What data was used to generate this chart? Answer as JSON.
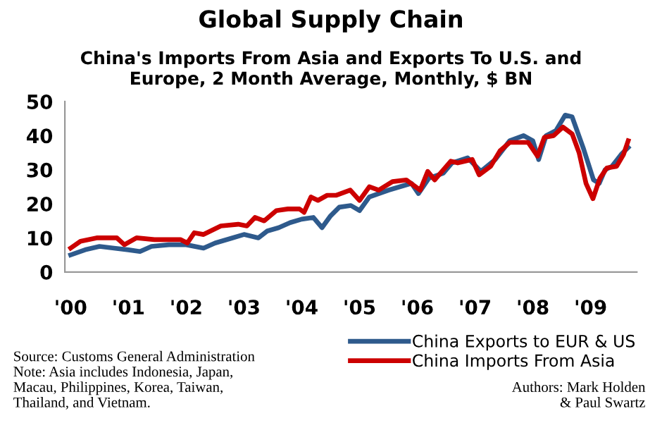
{
  "chart_data": {
    "type": "line",
    "title": "Global Supply Chain",
    "subtitle": "China's Imports From Asia and Exports To U.S. and\nEurope, 2 Month Average, Monthly, $ BN",
    "series": [
      {
        "name": "China Exports to EUR & US",
        "color": "#2e5a8c",
        "x": [
          2000.0,
          2000.25,
          2000.5,
          2000.75,
          2001.0,
          2001.2,
          2001.4,
          2001.7,
          2002.0,
          2002.3,
          2002.5,
          2002.8,
          2003.0,
          2003.25,
          2003.4,
          2003.6,
          2003.8,
          2004.0,
          2004.2,
          2004.35,
          2004.5,
          2004.65,
          2004.85,
          2005.0,
          2005.17,
          2005.5,
          2005.9,
          2006.02,
          2006.2,
          2006.45,
          2006.6,
          2006.87,
          2007.1,
          2007.35,
          2007.6,
          2007.84,
          2008.0,
          2008.1,
          2008.23,
          2008.4,
          2008.56,
          2008.68,
          2008.88,
          2009.05,
          2009.15,
          2009.25,
          2009.37,
          2009.53,
          2009.65
        ],
        "values": [
          5,
          6.5,
          7.5,
          7,
          6.5,
          6,
          7.5,
          8,
          8,
          7,
          8.5,
          10,
          11,
          10,
          12,
          13,
          14.5,
          15.5,
          16,
          13,
          16.5,
          19,
          19.5,
          18,
          22,
          24,
          26,
          23,
          27.5,
          29,
          32,
          33.5,
          29.5,
          33,
          38.5,
          40,
          38.5,
          33,
          40,
          41.5,
          46,
          45.5,
          36,
          27,
          26,
          30,
          31,
          34.5,
          36.5
        ]
      },
      {
        "name": "China Imports From Asia",
        "color": "#cc0000",
        "x": [
          2000.0,
          2000.17,
          2000.45,
          2000.8,
          2000.93,
          2001.14,
          2001.45,
          2001.7,
          2001.9,
          2002.02,
          2002.14,
          2002.3,
          2002.6,
          2002.9,
          2003.05,
          2003.19,
          2003.35,
          2003.56,
          2003.76,
          2003.96,
          2004.04,
          2004.16,
          2004.28,
          2004.44,
          2004.6,
          2004.84,
          2005.0,
          2005.17,
          2005.33,
          2005.57,
          2005.81,
          2006.05,
          2006.18,
          2006.3,
          2006.58,
          2006.7,
          2006.95,
          2007.07,
          2007.27,
          2007.43,
          2007.6,
          2007.76,
          2007.92,
          2008.08,
          2008.2,
          2008.36,
          2008.52,
          2008.68,
          2008.8,
          2008.92,
          2009.04,
          2009.16,
          2009.28,
          2009.45,
          2009.57,
          2009.65
        ],
        "values": [
          7,
          9,
          10,
          10,
          8,
          10,
          9.5,
          9.5,
          9.5,
          8.5,
          11.5,
          11,
          13.5,
          14,
          13.5,
          16,
          15,
          18,
          18.5,
          18.5,
          17.5,
          22,
          21,
          22.5,
          22.5,
          24,
          21,
          25,
          24,
          26.5,
          27,
          24,
          29.5,
          27,
          32.5,
          32,
          33,
          28.5,
          31,
          35.5,
          38,
          38,
          38,
          34,
          39.5,
          40,
          42.5,
          40.5,
          35,
          26,
          21.5,
          27.5,
          30.5,
          31,
          34.5,
          38.5
        ]
      }
    ],
    "xlim": [
      1999.9,
      2009.8
    ],
    "xticks": [
      {
        "value": 2000,
        "label": "'00"
      },
      {
        "value": 2001,
        "label": "'01"
      },
      {
        "value": 2002,
        "label": "'02"
      },
      {
        "value": 2003,
        "label": "'03"
      },
      {
        "value": 2004,
        "label": "'04"
      },
      {
        "value": 2005,
        "label": "'05"
      },
      {
        "value": 2006,
        "label": "'06"
      },
      {
        "value": 2007,
        "label": "'07"
      },
      {
        "value": 2008,
        "label": "'08"
      },
      {
        "value": 2009,
        "label": "'09"
      }
    ],
    "ylim": [
      0,
      50
    ],
    "yticks": [
      0,
      10,
      20,
      30,
      40,
      50
    ],
    "grid": false,
    "legend": "bottom right",
    "marker": "none",
    "line_style": "solid",
    "annotations": [
      "Source: Customs General Administration\nNote: Asia includes Indonesia, Japan,\nMacau, Philippines, Korea, Taiwan,\nThailand, and Vietnam.",
      "Authors: Mark Holden\n& Paul Swartz"
    ]
  }
}
